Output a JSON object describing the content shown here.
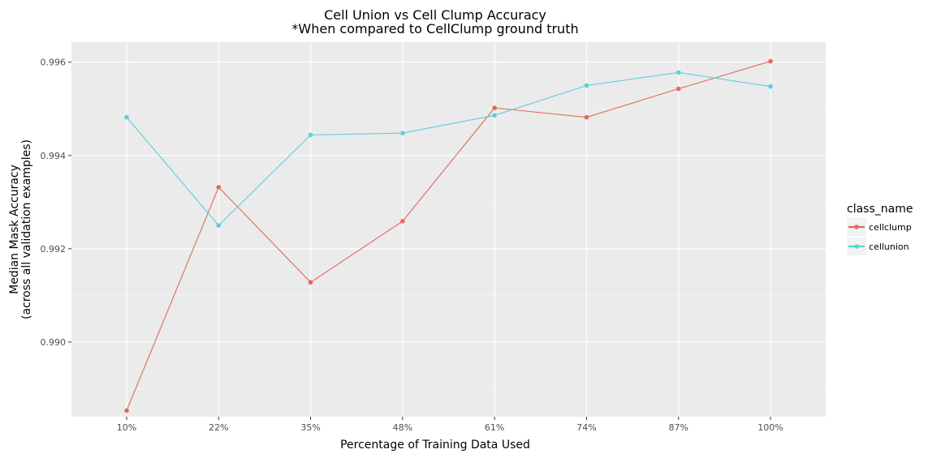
{
  "chart_data": {
    "type": "line",
    "title": "Cell Union vs Cell Clump Accuracy",
    "subtitle": "*When compared to CellClump ground truth",
    "xlabel": "Percentage of Training Data Used",
    "ylabel_line1": "Median Mask Accuracy",
    "ylabel_line2": "(across all validation examples)",
    "categories": [
      "10%",
      "22%",
      "35%",
      "48%",
      "61%",
      "74%",
      "87%",
      "100%"
    ],
    "ylim": [
      0.9884,
      0.99643
    ],
    "y_ticks": [
      0.99,
      0.992,
      0.994,
      0.996
    ],
    "y_tick_labels": [
      "0.990",
      "0.992",
      "0.994",
      "0.996"
    ],
    "grid": true,
    "legend": {
      "title": "class_name",
      "position": "right"
    },
    "series": [
      {
        "name": "cellclump",
        "color": "#E16A5C",
        "values": [
          0.98853,
          0.99332,
          0.99128,
          0.99259,
          0.99502,
          0.99482,
          0.99543,
          0.99602
        ]
      },
      {
        "name": "cellunion",
        "color": "#5BCFDB",
        "values": [
          0.99482,
          0.9925,
          0.99444,
          0.99448,
          0.99486,
          0.9955,
          0.99578,
          0.99548
        ]
      }
    ]
  }
}
